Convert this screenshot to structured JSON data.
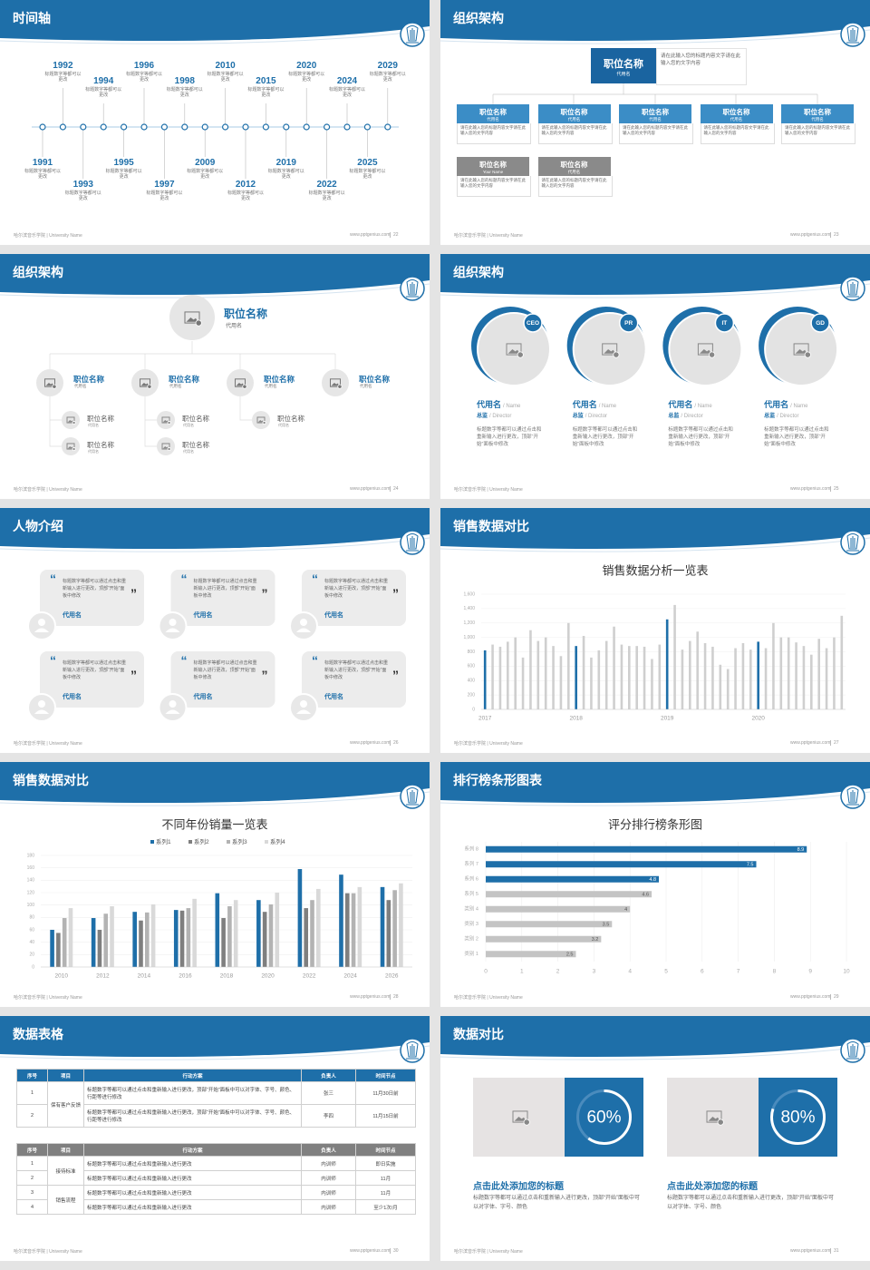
{
  "footer": {
    "left": "哈尔滨音乐学院 | University Name",
    "url": "www.pptgenius.com"
  },
  "slides": [
    {
      "title": "时间轴",
      "page": "22",
      "timeline": [
        {
          "year": "1991",
          "text": "标题数字等都可以更改"
        },
        {
          "year": "1992",
          "text": "标题数字等都可以更改"
        },
        {
          "year": "1993",
          "text": "标题数字等都可以更改"
        },
        {
          "year": "1994",
          "text": "标题数字等都可以更改"
        },
        {
          "year": "1995",
          "text": "标题数字等都可以更改"
        },
        {
          "year": "1996",
          "text": "标题数字等都可以更改"
        },
        {
          "year": "1997",
          "text": "标题数字等都可以更改"
        },
        {
          "year": "1998",
          "text": "标题数字等都可以更改"
        },
        {
          "year": "2009",
          "text": "标题数字等都可以更改"
        },
        {
          "year": "2010",
          "text": "标题数字等都可以更改"
        },
        {
          "year": "2012",
          "text": "标题数字等都可以更改"
        },
        {
          "year": "2015",
          "text": "标题数字等都可以更改"
        },
        {
          "year": "2019",
          "text": "标题数字等都可以更改"
        },
        {
          "year": "2020",
          "text": "标题数字等都可以更改"
        },
        {
          "year": "2022",
          "text": "标题数字等都可以更改"
        },
        {
          "year": "2024",
          "text": "标题数字等都可以更改"
        },
        {
          "year": "2025",
          "text": "标题数字等都可以更改"
        },
        {
          "year": "2029",
          "text": "标题数字等都可以更改"
        }
      ]
    },
    {
      "title": "组织架构",
      "page": "23",
      "org_top": {
        "title": "职位名称",
        "subtitle": "代用名",
        "text": "请在此输入您的标题内容文字请在此输入您的文字内容"
      },
      "org_boxes": [
        {
          "title": "职位名称",
          "subtitle": "代用名",
          "text": "请在此输入您的标题内容文字请在此输入您的文字内容",
          "color": "#3b8dc6"
        },
        {
          "title": "职位名称",
          "subtitle": "代用名",
          "text": "请在此输入您的标题内容文字请在此输入您的文字内容",
          "color": "#3b8dc6"
        },
        {
          "title": "职位名称",
          "subtitle": "代用名",
          "text": "请在此输入您的标题内容文字请在此输入您的文字内容",
          "color": "#3b8dc6"
        },
        {
          "title": "职位名称",
          "subtitle": "代用名",
          "text": "请在此输入您的标题内容文字请在此输入您的文字内容",
          "color": "#3b8dc6"
        },
        {
          "title": "职位名称",
          "subtitle": "代用名",
          "text": "请在此输入您的标题内容文字请在此输入您的文字内容",
          "color": "#3b8dc6"
        },
        {
          "title": "职位名称",
          "subtitle": "Your Name",
          "text": "请在此输入您的标题内容文字请在此输入您的文字内容",
          "color": "#8a8a8a"
        },
        {
          "title": "职位名称",
          "subtitle": "代用名",
          "text": "请在此输入您的标题内容文字请在此输入您的文字内容",
          "color": "#8a8a8a"
        }
      ]
    },
    {
      "title": "组织架构",
      "page": "24",
      "tree": {
        "title": "职位名称",
        "subtitle": "代用名",
        "branches": [
          {
            "title": "职位名称",
            "subtitle": "代用名",
            "children": [
              {
                "title": "职位名称",
                "subtitle": "代用名"
              },
              {
                "title": "职位名称",
                "subtitle": "代用名"
              }
            ]
          },
          {
            "title": "职位名称",
            "subtitle": "代用名",
            "children": [
              {
                "title": "职位名称",
                "subtitle": "代用名"
              },
              {
                "title": "职位名称",
                "subtitle": "代用名"
              }
            ]
          },
          {
            "title": "职位名称",
            "subtitle": "代用名",
            "children": [
              {
                "title": "职位名称",
                "subtitle": "代用名"
              }
            ]
          },
          {
            "title": "职位名称",
            "subtitle": "代用名",
            "children": []
          }
        ]
      }
    },
    {
      "title": "组织架构",
      "page": "25",
      "people": [
        {
          "tag": "CEO",
          "name": "代用名",
          "name_en": "/ Name",
          "role": "总监",
          "role_en": "/ Director",
          "text": "标题数字等都可以通过点击和重新输入进行更改，顶部“开始”面板中修改"
        },
        {
          "tag": "PR",
          "name": "代用名",
          "name_en": "/ Name",
          "role": "总监",
          "role_en": "/ Director",
          "text": "标题数字等都可以通过点击和重新输入进行更改，顶部“开始”面板中修改"
        },
        {
          "tag": "IT",
          "name": "代用名",
          "name_en": "/ Name",
          "role": "总监",
          "role_en": "/ Director",
          "text": "标题数字等都可以通过点击和重新输入进行更改，顶部“开始”面板中修改"
        },
        {
          "tag": "GD",
          "name": "代用名",
          "name_en": "/ Name",
          "role": "总监",
          "role_en": "/ Director",
          "text": "标题数字等都可以通过点击和重新输入进行更改，顶部“开始”面板中修改"
        }
      ]
    },
    {
      "title": "人物介绍",
      "page": "26",
      "open_quote": "“",
      "close_quote": "”",
      "cards": [
        {
          "text": "标题数字等都可以通过点击和重新输入进行更改，顶部“开始”面板中修改",
          "name": "代用名"
        },
        {
          "text": "标题数字等都可以通过点击和重新输入进行更改，顶部“开始”面板中修改",
          "name": "代用名"
        },
        {
          "text": "标题数字等都可以通过点击和重新输入进行更改，顶部“开始”面板中修改",
          "name": "代用名"
        },
        {
          "text": "标题数字等都可以通过点击和重新输入进行更改，顶部“开始”面板中修改",
          "name": "代用名"
        },
        {
          "text": "标题数字等都可以通过点击和重新输入进行更改，顶部“开始”面板中修改",
          "name": "代用名"
        },
        {
          "text": "标题数字等都可以通过点击和重新输入进行更改，顶部“开始”面板中修改",
          "name": "代用名"
        }
      ]
    },
    {
      "title": "销售数据对比",
      "page": "27",
      "chart_data": {
        "type": "bar",
        "title": "销售数据分析一览表",
        "categories": [
          "2017",
          null,
          null,
          null,
          null,
          null,
          null,
          null,
          null,
          null,
          null,
          null,
          "2018",
          null,
          null,
          null,
          null,
          null,
          null,
          null,
          null,
          null,
          null,
          null,
          "2019",
          null,
          null,
          null,
          null,
          null,
          null,
          null,
          null,
          null,
          null,
          null,
          "2020",
          null,
          null,
          null,
          null,
          null,
          null,
          null,
          null,
          null,
          null,
          null
        ],
        "values": [
          820,
          900,
          870,
          940,
          1000,
          720,
          1100,
          950,
          1000,
          880,
          740,
          1200,
          880,
          1020,
          720,
          820,
          950,
          1150,
          900,
          880,
          880,
          870,
          700,
          900,
          1250,
          1450,
          830,
          950,
          1080,
          920,
          870,
          620,
          560,
          850,
          920,
          830,
          940,
          850,
          1200,
          1000,
          1000,
          930,
          880,
          760,
          980,
          850,
          1000,
          1300
        ],
        "colors": [
          "#1e6fa9",
          "#cfcfcf",
          "#cfcfcf",
          "#cfcfcf",
          "#cfcfcf",
          "#cfcfcf",
          "#cfcfcf",
          "#cfcfcf",
          "#cfcfcf",
          "#cfcfcf",
          "#cfcfcf",
          "#cfcfcf",
          "#1e6fa9",
          "#cfcfcf",
          "#cfcfcf",
          "#cfcfcf",
          "#cfcfcf",
          "#cfcfcf",
          "#cfcfcf",
          "#cfcfcf",
          "#cfcfcf",
          "#cfcfcf",
          "#cfcfcf",
          "#cfcfcf",
          "#1e6fa9",
          "#cfcfcf",
          "#cfcfcf",
          "#cfcfcf",
          "#cfcfcf",
          "#cfcfcf",
          "#cfcfcf",
          "#cfcfcf",
          "#cfcfcf",
          "#cfcfcf",
          "#cfcfcf",
          "#cfcfcf",
          "#1e6fa9",
          "#cfcfcf",
          "#cfcfcf",
          "#cfcfcf",
          "#cfcfcf",
          "#cfcfcf",
          "#cfcfcf",
          "#cfcfcf",
          "#cfcfcf",
          "#cfcfcf",
          "#cfcfcf",
          "#cfcfcf"
        ],
        "ylim": [
          0,
          1600
        ],
        "yticks": [
          0,
          200,
          400,
          600,
          800,
          {
            "value": 1000,
            "label": "1,000"
          },
          {
            "value": 1200,
            "label": "1,200"
          },
          {
            "value": 1400,
            "label": "1,400"
          },
          {
            "value": 1600,
            "label": "1,600"
          }
        ],
        "grid": true
      }
    },
    {
      "title": "销售数据对比",
      "page": "28",
      "chart_data": {
        "type": "bar",
        "title": "不同年份销量一览表",
        "categories": [
          "2010",
          "2012",
          "2014",
          "2016",
          "2018",
          "2020",
          "2022",
          "2024",
          "2026"
        ],
        "series": [
          {
            "name": "系列1",
            "color": "#1e6fa9",
            "values": [
              60,
              79,
              89,
              92,
              119,
              108,
              158,
              149,
              129
            ]
          },
          {
            "name": "系列2",
            "color": "#7f7f7f",
            "values": [
              55,
              60,
              75,
              91,
              79,
              89,
              95,
              119,
              108
            ]
          },
          {
            "name": "系列3",
            "color": "#b3b3b3",
            "values": [
              79,
              86,
              88,
              95,
              98,
              101,
              108,
              119,
              124
            ]
          },
          {
            "name": "系列4",
            "color": "#d9d9d9",
            "values": [
              95,
              98,
              101,
              110,
              108,
              120,
              126,
              129,
              135
            ]
          }
        ],
        "ylim": [
          0,
          180
        ],
        "yticks": [
          0,
          20,
          40,
          60,
          80,
          100,
          120,
          140,
          160,
          180
        ],
        "grid": true,
        "legend": "top"
      }
    },
    {
      "title": "排行榜条形图表",
      "page": "29",
      "chart_data": {
        "type": "barh",
        "title": "评分排行榜条形图",
        "categories": [
          "类别 1",
          "类别 2",
          "类别 3",
          "类别 4",
          "系列 5",
          "系列 6",
          "系列 7",
          "系列 8"
        ],
        "values": [
          2.5,
          3.2,
          3.5,
          4,
          4.6,
          4.8,
          7.5,
          8.9
        ],
        "colors": [
          "#c4c4c4",
          "#c4c4c4",
          "#c4c4c4",
          "#c4c4c4",
          "#c4c4c4",
          "#1e6fa9",
          "#1e6fa9",
          "#1e6fa9"
        ],
        "xlim": [
          0,
          10
        ],
        "xticks": [
          0,
          1,
          2,
          3,
          4,
          5,
          6,
          7,
          8,
          9,
          10
        ],
        "grid": true
      }
    },
    {
      "title": "数据表格",
      "page": "30",
      "tables": [
        {
          "headers": [
            "序号",
            "项目",
            "行动方案",
            "负责人",
            "时间节点"
          ],
          "rows": [
            [
              "1",
              "保有客户反馈",
              "标题数字等都可以通过点击和重新输入进行更改，顶部“开始”面板中可以对字体、字号、颜色、行距等进行修改",
              "张三",
              "11月30日前"
            ],
            [
              "2",
              null,
              "标题数字等都可以通过点击和重新输入进行更改，顶部“开始”面板中可以对字体、字号、颜色、行距等进行修改",
              "李四",
              "11月15日前"
            ]
          ]
        },
        {
          "headers": [
            "序号",
            "项目",
            "行动方案",
            "负责人",
            "时间节点"
          ],
          "rows": [
            [
              "1",
              "接待标准",
              "标题数字等都可以通过点击和重新输入进行更改",
              "内训师",
              "即日实施"
            ],
            [
              "2",
              null,
              "标题数字等都可以通过点击和重新输入进行更改",
              "内训师",
              "11月"
            ],
            [
              "3",
              "销售流程",
              "标题数字等都可以通过点击和重新输入进行更改",
              "内训师",
              "11月"
            ],
            [
              "4",
              null,
              "标题数字等都可以通过点击和重新输入进行更改",
              "内训师",
              "至少1次/月"
            ]
          ]
        }
      ]
    },
    {
      "title": "数据对比",
      "page": "31",
      "compare": [
        {
          "value": 60,
          "value_label": "60%",
          "title": "点击此处添加您的标题",
          "text": "标题数字等都可以通过点击和重新输入进行更改，顶部“开始”面板中可以对字体、字号、颜色"
        },
        {
          "value": 80,
          "value_label": "80%",
          "title": "点击此处添加您的标题",
          "text": "标题数字等都可以通过点击和重新输入进行更改，顶部“开始”面板中可以对字体、字号、颜色"
        }
      ]
    }
  ]
}
